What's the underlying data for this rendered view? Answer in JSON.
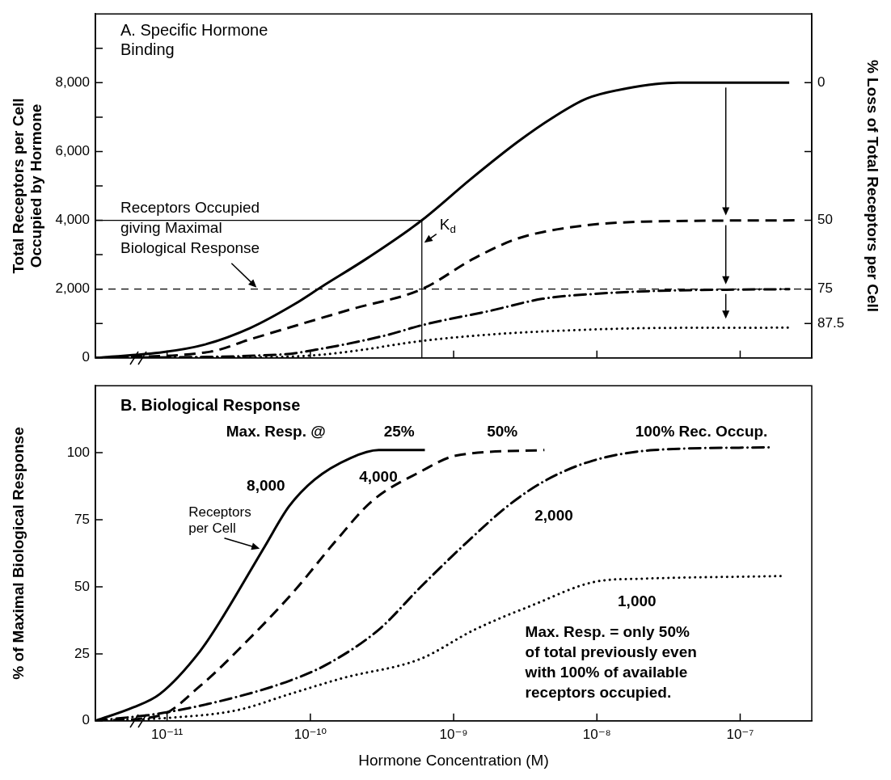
{
  "chart_data": [
    {
      "type": "line",
      "title": "A. Specific Hormone\nBinding",
      "ylabel": "Total Receptors per Cell\nOccupied by Hormone",
      "y2label": "% Loss of Total Receptors per Cell",
      "log": "x",
      "tick_labels": "y",
      "xlim": [
        3.16e-12,
        3.16e-07
      ],
      "xticks": [
        {
          "value": 1e-11,
          "label": null
        },
        {
          "value": 1e-10,
          "label": null
        },
        {
          "value": 1e-09,
          "label": null
        },
        {
          "value": 1e-08,
          "label": null
        },
        {
          "value": 1e-07,
          "label": null
        }
      ],
      "ylim": [
        0,
        10000
      ],
      "yticks": [
        0,
        {
          "value": 1000,
          "label": null
        },
        {
          "value": 2000,
          "label": "2,000"
        },
        {
          "value": 3000,
          "label": null
        },
        {
          "value": 4000,
          "label": "4,000"
        },
        {
          "value": 5000,
          "label": null
        },
        {
          "value": 6000,
          "label": "6,000"
        },
        {
          "value": 7000,
          "label": null
        },
        {
          "value": 8000,
          "label": "8,000"
        },
        {
          "value": 9000,
          "label": null
        }
      ],
      "y2lim": [
        100,
        -25
      ],
      "y2ticks": [
        0,
        {
          "value": 25,
          "label": null
        },
        50,
        75,
        87.5
      ],
      "ref_lines": [
        {
          "axis": "y",
          "value": 2000,
          "label": "Receptors Occupied\ngiving Maximal\nBiological Response",
          "line_style": "dashed",
          "color": "#000000"
        },
        {
          "axis": "y",
          "value": 4000,
          "color": "#000000"
        },
        {
          "axis": "x",
          "value": 6e-10,
          "label": "K$_{d}$",
          "color": "#000000"
        }
      ],
      "series": [
        {
          "color": "#000000",
          "line_style": "solid",
          "x": [
            3.16e-12,
            9.5e-12,
            1.8e-11,
            3.8e-11,
            7.8e-11,
            1.2e-10,
            2.5e-10,
            6e-10,
            1.3e-09,
            2.8e-09,
            4.9e-09,
            8.5e-09,
            1.6e-08,
            3.7e-08,
            2.2e-07
          ],
          "values": [
            0,
            170,
            380,
            870,
            1570,
            2070,
            2900,
            4000,
            5180,
            6280,
            6980,
            7540,
            7830,
            8000,
            8000
          ]
        },
        {
          "color": "#000000",
          "line_style": "dashed",
          "x": [
            3.16e-12,
            2e-11,
            3.8e-11,
            1.95e-10,
            6e-10,
            1.4e-09,
            2.8e-09,
            7.2e-09,
            2.1e-08,
            2.5e-07
          ],
          "values": [
            0,
            180,
            540,
            1420,
            2000,
            2900,
            3470,
            3820,
            3960,
            4000
          ]
        },
        {
          "color": "#000000",
          "line_style": "dashdot",
          "x": [
            3.16e-12,
            6.3e-11,
            1.1e-10,
            3.4e-10,
            6e-10,
            1.8e-09,
            4.2e-09,
            9.5e-09,
            2.75e-08,
            2.2e-07
          ],
          "values": [
            0,
            100,
            240,
            660,
            950,
            1370,
            1720,
            1860,
            1950,
            2000
          ]
        },
        {
          "color": "#000000",
          "line_style": "dotted",
          "x": [
            3.16e-12,
            5e-11,
            1.1e-10,
            2e-10,
            5.9e-10,
            1.8e-09,
            5.5e-09,
            2.75e-08,
            2.2e-07
          ],
          "values": [
            0,
            20,
            80,
            200,
            490,
            680,
            790,
            870,
            880
          ]
        }
      ]
    },
    {
      "type": "line",
      "title": "B. Biological Response",
      "xlabel": "Hormone Concentration (M)",
      "ylabel": "% of Maximal Biological Response",
      "log": "x",
      "xlim": [
        3.16e-12,
        3.16e-07
      ],
      "xticks": [
        {
          "value": 1e-11,
          "label": "10⁻¹¹"
        },
        {
          "value": 1e-10,
          "label": "10⁻¹⁰"
        },
        {
          "value": 1e-09,
          "label": "10⁻⁹"
        },
        {
          "value": 1e-08,
          "label": "10⁻⁸"
        },
        {
          "value": 1e-07,
          "label": "10⁻⁷"
        }
      ],
      "ylim": [
        0,
        125
      ],
      "yticks": [
        0,
        25,
        50,
        75,
        100
      ],
      "annotations": [
        "Max. Resp. @",
        "25%",
        "50%",
        "100% Rec. Occup.",
        {
          "text": "Receptors\nper Cell",
          "x": 4.6e-11,
          "y": 64
        },
        "Max. Resp. = only 50%\nof total previously even\nwith 100% of available\nreceptors occupied."
      ],
      "series": [
        {
          "name": "8,000",
          "color": "#000000",
          "line_style": "solid",
          "x": [
            3.16e-12,
            5.8e-12,
            8.9e-12,
            1.7e-11,
            2.4e-11,
            4.8e-11,
            7.1e-11,
            1.07e-10,
            1.9e-10,
            3e-10,
            6.3e-10
          ],
          "values": [
            0,
            5,
            10,
            26,
            38,
            65,
            80,
            90,
            98,
            101,
            101
          ]
        },
        {
          "name": "4,000",
          "color": "#000000",
          "line_style": "dashed",
          "x": [
            3.16e-12,
            8.9e-12,
            1.7e-11,
            3.5e-11,
            7.6e-11,
            1.5e-10,
            2.7e-10,
            5.9e-10,
            1.05e-09,
            4.3e-09
          ],
          "values": [
            0,
            2,
            13,
            29,
            48,
            67,
            82,
            93,
            99,
            101
          ]
        },
        {
          "name": "2,000",
          "color": "#000000",
          "line_style": "dashdot",
          "x": [
            3.16e-12,
            9.5e-12,
            3.1e-11,
            7.2e-11,
            1.3e-10,
            3e-10,
            5.9e-10,
            1.26e-09,
            2.5e-09,
            4.5e-09,
            9.3e-09,
            2.5e-08,
            1.6e-07
          ],
          "values": [
            0,
            3,
            9,
            15,
            21,
            34,
            50,
            67,
            81,
            90,
            97,
            101,
            102
          ]
        },
        {
          "name": "1,000",
          "color": "#000000",
          "line_style": "dotted",
          "x": [
            3.16e-12,
            9.5e-12,
            3.1e-11,
            7.2e-11,
            1.7e-10,
            5.8e-10,
            1.4e-09,
            3.5e-09,
            1e-08,
            2e-08,
            2e-07
          ],
          "values": [
            0,
            1,
            4,
            10,
            16,
            23,
            34,
            43,
            52,
            53,
            54
          ]
        }
      ]
    }
  ]
}
